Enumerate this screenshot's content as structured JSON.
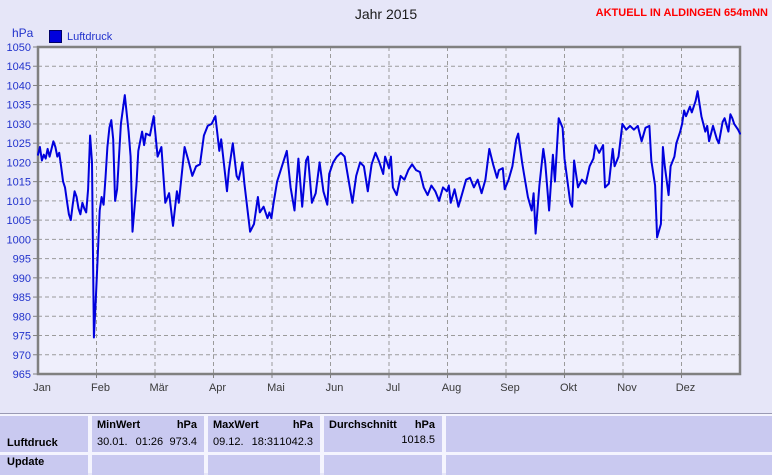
{
  "header": {
    "title": "Jahr 2015",
    "station_banner": "AKTUELL IN ALDINGEN 654mNN"
  },
  "chart": {
    "y_axis_unit": "hPa",
    "legend_label": "Luftdruck"
  },
  "colors": {
    "page_bg": "#E6E6F8",
    "plot_bg": "#EFEFFC",
    "accent_blue": "#0000DD",
    "axis_label_blue": "#2233CC",
    "month_label_color": "#3a3a3a",
    "grid_gray": "#9b9b9b",
    "border_gray": "#808080",
    "banner_red": "#FF0000",
    "table_cell_bg": "#C9C9F0"
  },
  "chart_data": {
    "type": "line",
    "title": "Jahr 2015",
    "ylabel": "hPa",
    "xlabel": "",
    "ylim": [
      965,
      1050
    ],
    "ytick_step": 5,
    "x_range_days": [
      1,
      365
    ],
    "x_months": [
      "Jan",
      "Feb",
      "Mär",
      "Apr",
      "Mai",
      "Jun",
      "Jul",
      "Aug",
      "Sep",
      "Okt",
      "Nov",
      "Dez"
    ],
    "grid": true,
    "legend_position": "top-left",
    "series": [
      {
        "name": "Luftdruck",
        "unit": "hPa",
        "color": "#0000DD",
        "points": [
          [
            1,
            1022
          ],
          [
            2,
            1024
          ],
          [
            3,
            1020.5
          ],
          [
            4,
            1022
          ],
          [
            5,
            1021
          ],
          [
            6,
            1023.5
          ],
          [
            7,
            1021.5
          ],
          [
            9,
            1025.5
          ],
          [
            10,
            1024
          ],
          [
            11,
            1021.5
          ],
          [
            12,
            1022.5
          ],
          [
            13,
            1019
          ],
          [
            14,
            1015
          ],
          [
            15,
            1013.5
          ],
          [
            16,
            1010
          ],
          [
            17,
            1006.5
          ],
          [
            18,
            1005
          ],
          [
            19,
            1009
          ],
          [
            20,
            1012.5
          ],
          [
            21,
            1011
          ],
          [
            22,
            1008
          ],
          [
            23,
            1006.5
          ],
          [
            24,
            1009.5
          ],
          [
            25,
            1008
          ],
          [
            26,
            1007
          ],
          [
            27,
            1013
          ],
          [
            28,
            1027
          ],
          [
            29,
            1020
          ],
          [
            30,
            974.5
          ],
          [
            31,
            985
          ],
          [
            32,
            996
          ],
          [
            33,
            1007.5
          ],
          [
            34,
            1011
          ],
          [
            35,
            1009
          ],
          [
            36,
            1016
          ],
          [
            37,
            1024
          ],
          [
            38,
            1029
          ],
          [
            39,
            1031
          ],
          [
            40,
            1026
          ],
          [
            41,
            1010
          ],
          [
            42,
            1013
          ],
          [
            44,
            1030
          ],
          [
            46,
            1037.5
          ],
          [
            48,
            1028
          ],
          [
            49,
            1021.5
          ],
          [
            50,
            1002
          ],
          [
            52,
            1014
          ],
          [
            53,
            1023
          ],
          [
            55,
            1028
          ],
          [
            56,
            1024.5
          ],
          [
            57,
            1027.5
          ],
          [
            59,
            1027
          ],
          [
            61,
            1032
          ],
          [
            63,
            1021.5
          ],
          [
            65,
            1024
          ],
          [
            67,
            1009.5
          ],
          [
            69,
            1012
          ],
          [
            71,
            1003.5
          ],
          [
            73,
            1012.5
          ],
          [
            74,
            1009.5
          ],
          [
            77,
            1024
          ],
          [
            79,
            1020.5
          ],
          [
            81,
            1016.5
          ],
          [
            83,
            1019
          ],
          [
            85,
            1019.5
          ],
          [
            87,
            1027
          ],
          [
            89,
            1029.5
          ],
          [
            91,
            1030
          ],
          [
            93,
            1032
          ],
          [
            95,
            1023
          ],
          [
            96,
            1026
          ],
          [
            99,
            1012.5
          ],
          [
            100,
            1018
          ],
          [
            102,
            1025
          ],
          [
            104,
            1016.5
          ],
          [
            105,
            1015.5
          ],
          [
            107,
            1020
          ],
          [
            108,
            1014.5
          ],
          [
            111,
            1002
          ],
          [
            113,
            1004
          ],
          [
            115,
            1011
          ],
          [
            116,
            1007
          ],
          [
            118,
            1008.5
          ],
          [
            120,
            1005.5
          ],
          [
            121,
            1007
          ],
          [
            122,
            1005.5
          ],
          [
            123,
            1009
          ],
          [
            125,
            1015
          ],
          [
            130,
            1023
          ],
          [
            132,
            1013.5
          ],
          [
            134,
            1007.5
          ],
          [
            136,
            1021
          ],
          [
            138,
            1008.5
          ],
          [
            140,
            1020.5
          ],
          [
            141,
            1021.5
          ],
          [
            143,
            1009.5
          ],
          [
            145,
            1012
          ],
          [
            147,
            1020
          ],
          [
            149,
            1012.5
          ],
          [
            151,
            1009
          ],
          [
            152,
            1017
          ],
          [
            154,
            1020
          ],
          [
            156,
            1021.5
          ],
          [
            158,
            1022.5
          ],
          [
            160,
            1021.5
          ],
          [
            162,
            1015.5
          ],
          [
            164,
            1009.5
          ],
          [
            166,
            1016.5
          ],
          [
            168,
            1020
          ],
          [
            170,
            1019
          ],
          [
            172,
            1012.5
          ],
          [
            174,
            1019.5
          ],
          [
            176,
            1022.5
          ],
          [
            178,
            1020
          ],
          [
            180,
            1017
          ],
          [
            181,
            1021.5
          ],
          [
            183,
            1018.5
          ],
          [
            184,
            1021.5
          ],
          [
            185,
            1013.5
          ],
          [
            187,
            1011.5
          ],
          [
            189,
            1016.5
          ],
          [
            191,
            1015.5
          ],
          [
            193,
            1018
          ],
          [
            195,
            1019.5
          ],
          [
            197,
            1018
          ],
          [
            199,
            1017.5
          ],
          [
            201,
            1013.5
          ],
          [
            203,
            1011.5
          ],
          [
            205,
            1014
          ],
          [
            207,
            1012.5
          ],
          [
            209,
            1010
          ],
          [
            211,
            1013.5
          ],
          [
            213,
            1012.5
          ],
          [
            214,
            1014
          ],
          [
            215,
            1009.5
          ],
          [
            217,
            1013
          ],
          [
            219,
            1008.5
          ],
          [
            221,
            1012
          ],
          [
            223,
            1015.5
          ],
          [
            225,
            1016
          ],
          [
            227,
            1013.5
          ],
          [
            229,
            1015.5
          ],
          [
            231,
            1012
          ],
          [
            233,
            1015.5
          ],
          [
            235,
            1023.5
          ],
          [
            237,
            1019.5
          ],
          [
            239,
            1016
          ],
          [
            240,
            1018
          ],
          [
            242,
            1018.5
          ],
          [
            243,
            1013
          ],
          [
            245,
            1015.5
          ],
          [
            247,
            1019
          ],
          [
            249,
            1026
          ],
          [
            250,
            1027.5
          ],
          [
            252,
            1020
          ],
          [
            253,
            1017
          ],
          [
            255,
            1011
          ],
          [
            257,
            1007.5
          ],
          [
            258,
            1012
          ],
          [
            259,
            1001.5
          ],
          [
            261,
            1014
          ],
          [
            263,
            1023.5
          ],
          [
            264,
            1020
          ],
          [
            266,
            1007.5
          ],
          [
            268,
            1022
          ],
          [
            269,
            1015
          ],
          [
            271,
            1031.5
          ],
          [
            273,
            1029
          ],
          [
            274,
            1021
          ],
          [
            277,
            1009.5
          ],
          [
            278,
            1008.5
          ],
          [
            279,
            1020.5
          ],
          [
            281,
            1013.5
          ],
          [
            283,
            1015.5
          ],
          [
            285,
            1014.5
          ],
          [
            287,
            1019
          ],
          [
            289,
            1021
          ],
          [
            290,
            1024.5
          ],
          [
            292,
            1022.5
          ],
          [
            294,
            1024.5
          ],
          [
            295,
            1013.5
          ],
          [
            297,
            1014.5
          ],
          [
            299,
            1023.5
          ],
          [
            300,
            1019
          ],
          [
            302,
            1021.5
          ],
          [
            304,
            1030
          ],
          [
            306,
            1028.5
          ],
          [
            308,
            1029.5
          ],
          [
            310,
            1028.5
          ],
          [
            312,
            1029.5
          ],
          [
            314,
            1025.5
          ],
          [
            316,
            1029
          ],
          [
            318,
            1029.5
          ],
          [
            319,
            1020.5
          ],
          [
            321,
            1014
          ],
          [
            322,
            1000.5
          ],
          [
            324,
            1004
          ],
          [
            325,
            1024
          ],
          [
            326,
            1019
          ],
          [
            328,
            1011.5
          ],
          [
            329,
            1019
          ],
          [
            331,
            1021.5
          ],
          [
            332,
            1025
          ],
          [
            334,
            1028
          ],
          [
            335,
            1030
          ],
          [
            336,
            1033.5
          ],
          [
            337,
            1032
          ],
          [
            339,
            1034.5
          ],
          [
            340,
            1033
          ],
          [
            342,
            1036
          ],
          [
            343,
            1038.5
          ],
          [
            345,
            1032
          ],
          [
            347,
            1028
          ],
          [
            348,
            1029.5
          ],
          [
            349,
            1025.5
          ],
          [
            351,
            1029.5
          ],
          [
            353,
            1026
          ],
          [
            354,
            1025
          ],
          [
            356,
            1030.5
          ],
          [
            357,
            1031.5
          ],
          [
            359,
            1028
          ],
          [
            360,
            1032.5
          ],
          [
            361,
            1031.5
          ],
          [
            362,
            1030
          ],
          [
            364,
            1028.5
          ],
          [
            365,
            1027.5
          ]
        ]
      }
    ]
  },
  "table": {
    "row_label": "Luftdruck",
    "clipped_row_label": "Update",
    "min": {
      "header": "MinWert",
      "unit": "hPa",
      "date": "30.01.",
      "time": "01:26",
      "value": "973.4"
    },
    "max": {
      "header": "MaxWert",
      "unit": "hPa",
      "date": "09.12.",
      "time": "18:31",
      "value": "1042.3"
    },
    "avg": {
      "header": "Durchschnitt",
      "unit": "hPa",
      "value": "1018.5"
    }
  }
}
